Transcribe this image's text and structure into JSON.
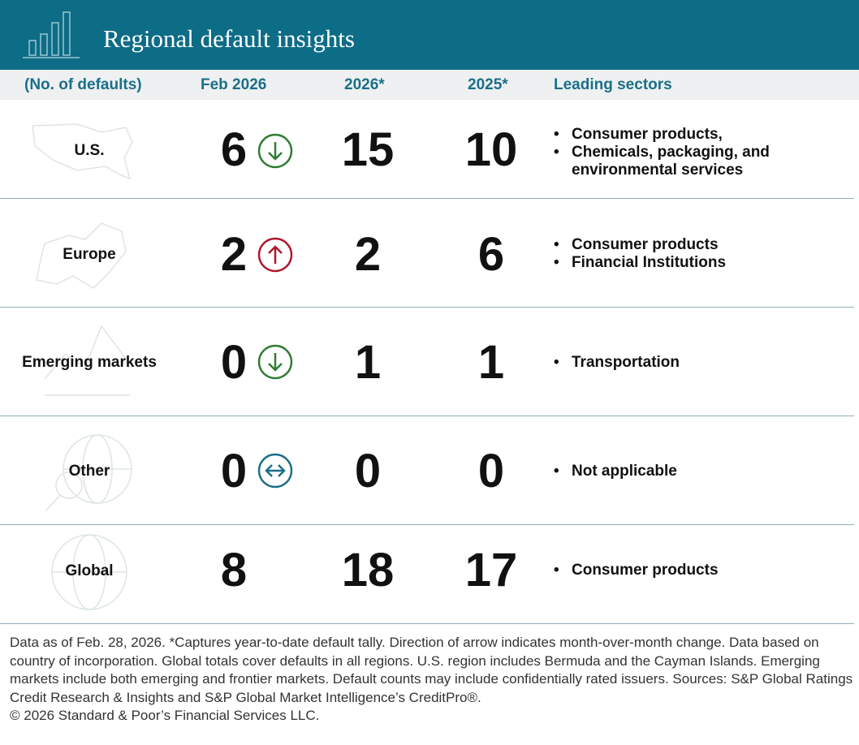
{
  "header": {
    "title": "Regional default insights"
  },
  "table": {
    "columns": [
      "(No. of defaults)",
      "Feb 2026",
      "2026*",
      "2025*",
      "Leading sectors"
    ],
    "rows": [
      {
        "region": "U.S.",
        "feb": 6,
        "ytd2026": 15,
        "ytd2025": 10,
        "sectors": [
          "Consumer products,",
          "Chemicals, packaging, and environmental services"
        ]
      },
      {
        "region": "Europe",
        "feb": 2,
        "ytd2026": 2,
        "ytd2025": 6,
        "sectors": [
          "Consumer products",
          "Financial Institutions"
        ]
      },
      {
        "region": "Emerging markets",
        "feb": 0,
        "ytd2026": 1,
        "ytd2025": 1,
        "sectors": [
          "Transportation"
        ]
      },
      {
        "region": "Other",
        "feb": 0,
        "ytd2026": 0,
        "ytd2025": 0,
        "sectors": [
          "Not applicable"
        ]
      },
      {
        "region": "Global",
        "feb": 8,
        "ytd2026": 18,
        "ytd2025": 17,
        "sectors": [
          "Consumer products"
        ]
      }
    ]
  },
  "footer": {
    "notes": "Data as of Feb. 28, 2026. *Captures year-to-date default tally. Direction of arrow indicates month-over-month change. Data based on country of incorporation. Global totals cover defaults in all regions. U.S. region includes Bermuda and the Cayman Islands. Emerging markets include both emerging and frontier markets. Default counts may include confidentially rated issuers. Sources: S&P Global Ratings Credit Research & Insights and S&P Global Market Intelligence’s CreditPro®.",
    "copyright": "© 2026 Standard & Poor’s Financial Services LLC."
  }
}
